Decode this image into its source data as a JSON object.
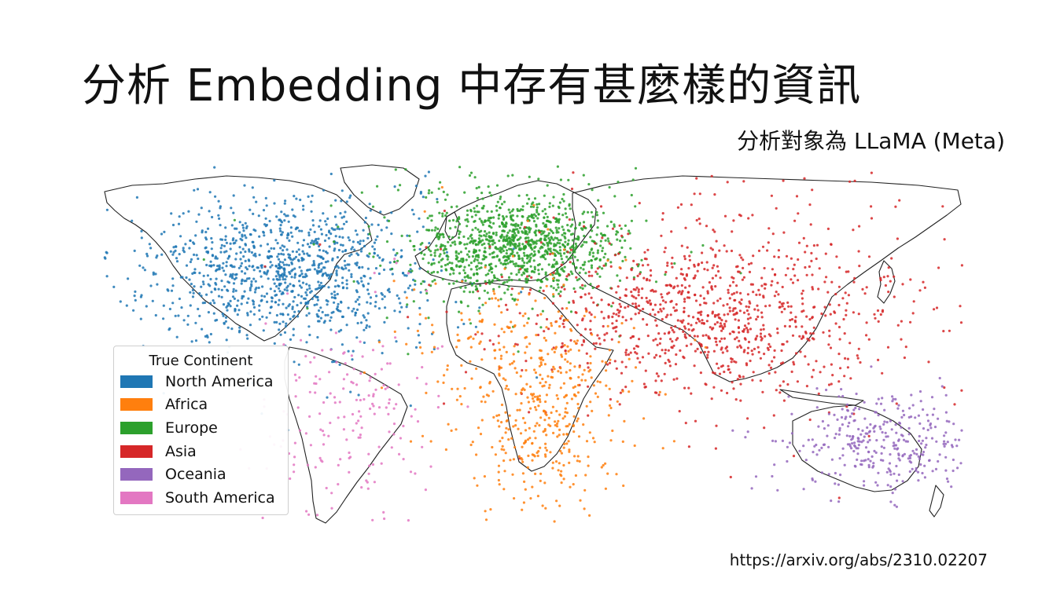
{
  "slide": {
    "title": "分析 Embedding 中存有甚麼樣的資訊",
    "subtitle": "分析對象為 LLaMA (Meta)",
    "source_url": "https://arxiv.org/abs/2310.02207"
  },
  "chart_data": {
    "type": "scatter",
    "title": "",
    "xlabel": "",
    "ylabel": "",
    "background": "world map outline",
    "legend": {
      "title": "True Continent",
      "placement": "lower-left",
      "entries": [
        {
          "name": "North America",
          "color": "#1f77b4"
        },
        {
          "name": "Africa",
          "color": "#ff7f0e"
        },
        {
          "name": "Europe",
          "color": "#2ca02c"
        },
        {
          "name": "Asia",
          "color": "#d62728"
        },
        {
          "name": "Oceania",
          "color": "#9467bd"
        },
        {
          "name": "South America",
          "color": "#e377c2"
        }
      ]
    },
    "series": [
      {
        "name": "North America",
        "color": "#1f77b4"
      },
      {
        "name": "Africa",
        "color": "#ff7f0e"
      },
      {
        "name": "Europe",
        "color": "#2ca02c"
      },
      {
        "name": "Asia",
        "color": "#d62728"
      },
      {
        "name": "Oceania",
        "color": "#9467bd"
      },
      {
        "name": "South America",
        "color": "#e377c2"
      }
    ]
  }
}
